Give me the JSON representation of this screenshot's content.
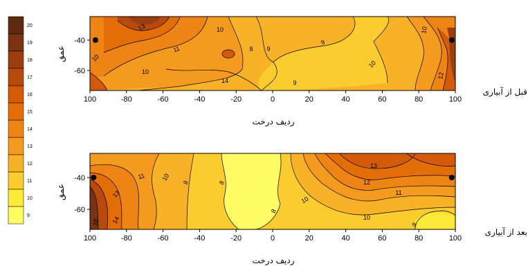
{
  "colorbar": {
    "levels": [
      "20",
      "19",
      "18",
      "17",
      "16",
      "15",
      "14",
      "13",
      "12",
      "11",
      "10",
      "9"
    ],
    "colors": [
      "#5e2a12",
      "#7a3212",
      "#9a3e10",
      "#b84a0c",
      "#d25a08",
      "#e36e08",
      "#ee8414",
      "#f49a1e",
      "#f8b228",
      "#fbcc2e",
      "#fce938",
      "#fdfa64"
    ]
  },
  "chart_data": [
    {
      "type": "heatmap",
      "title": "قبل از آبیاری",
      "xlabel": "ردیف درخت",
      "ylabel": "عمق",
      "xticks": [
        "100",
        "-80",
        "-60",
        "-40",
        "-20",
        "0",
        "20",
        "40",
        "60",
        "80",
        "100"
      ],
      "yticks": [
        "-40",
        "-60"
      ],
      "contour_labels": [
        "13",
        "10",
        "11",
        "10",
        "8",
        "9",
        "9",
        "10",
        "9",
        "10",
        "12",
        "10",
        "14"
      ],
      "markers": [
        {
          "x": -97,
          "y": -40
        },
        {
          "x": 98,
          "y": -40
        }
      ],
      "zrange": [
        9,
        20
      ]
    },
    {
      "type": "heatmap",
      "title": "بعد از آبیاری",
      "xlabel": "ردیف درخت",
      "ylabel": "عمق",
      "xticks": [
        "100",
        "-80",
        "-60",
        "-40",
        "-20",
        "0",
        "20",
        "40",
        "60",
        "80",
        "100"
      ],
      "yticks": [
        "-40",
        "-60"
      ],
      "contour_labels": [
        "11",
        "13",
        "10",
        "9",
        "8",
        "8",
        "10",
        "12",
        "13",
        "11",
        "10",
        "9",
        "14",
        "16"
      ],
      "markers": [
        {
          "x": -98,
          "y": -40
        },
        {
          "x": 98,
          "y": -40
        }
      ],
      "zrange": [
        9,
        20
      ]
    }
  ]
}
